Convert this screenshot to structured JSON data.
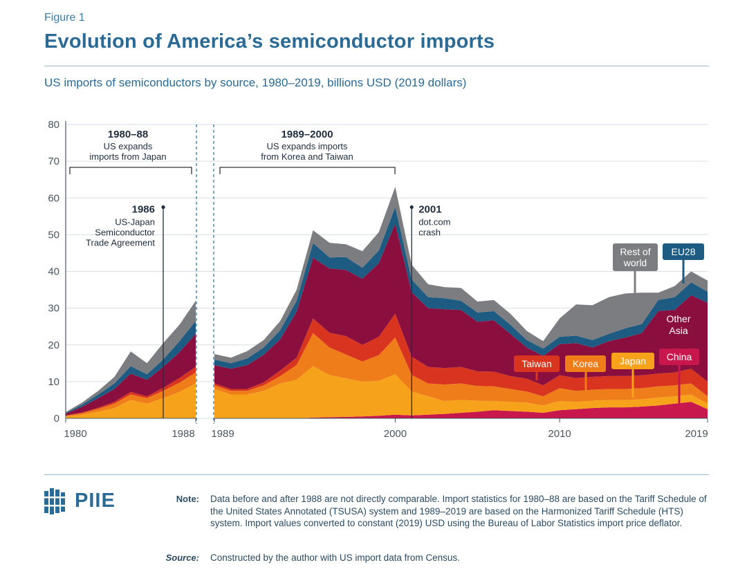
{
  "figure_label": "Figure 1",
  "title": "Evolution of America’s semiconductor imports",
  "subtitle": "US imports of semiconductors by source, 1980–2019, billions USD (2019 dollars)",
  "colors": {
    "china": "#c8174d",
    "japan": "#f7a21b",
    "korea": "#ef7d19",
    "taiwan": "#d8341f",
    "other_asia": "#8a0f3e",
    "eu28": "#1d5b82",
    "rest_of_world": "#7b7d80",
    "text_dark": "#1f2d3d",
    "accent": "#2b6a94"
  },
  "chart_data": {
    "type": "area",
    "stacked": true,
    "title": "Evolution of America’s semiconductor imports",
    "subtitle": "US imports of semiconductors by source, 1980–2019, billions USD (2019 dollars)",
    "ylim": [
      0,
      80
    ],
    "yticks": [
      "0",
      "10",
      "20",
      "30",
      "40",
      "50",
      "60",
      "70",
      "80"
    ],
    "xtick_labels": [
      "1980",
      "1988",
      "1989",
      "2000",
      "2010",
      "2019"
    ],
    "grid": "horizontal",
    "series_order": [
      "China",
      "Japan",
      "Korea",
      "Taiwan",
      "Other Asia",
      "EU28",
      "Rest of world"
    ],
    "series_keys": [
      "china",
      "japan",
      "korea",
      "taiwan",
      "other_asia",
      "eu28",
      "rest_of_world"
    ],
    "segments": [
      {
        "x": [
          1980,
          1981,
          1982,
          1983,
          1984,
          1985,
          1986,
          1987,
          1988
        ],
        "series": {
          "china": [
            0,
            0,
            0,
            0,
            0,
            0,
            0,
            0,
            0
          ],
          "japan": [
            0.5,
            1.0,
            1.8,
            2.8,
            5.0,
            4.0,
            5.5,
            7.2,
            9.5
          ],
          "korea": [
            0.2,
            0.4,
            0.8,
            1.2,
            1.5,
            1.5,
            2.0,
            2.5,
            3.0
          ],
          "taiwan": [
            0.1,
            0.2,
            0.3,
            0.5,
            0.7,
            0.5,
            0.8,
            1.3,
            1.5
          ],
          "other_asia": [
            0.5,
            1.5,
            2.6,
            3.5,
            5.0,
            4.5,
            5.7,
            7.0,
            9.0
          ],
          "eu28": [
            0.2,
            0.6,
            1.0,
            1.5,
            2.0,
            1.5,
            2.0,
            3.0,
            3.5
          ],
          "rest_of_world": [
            0.2,
            0.6,
            1.0,
            1.8,
            4.0,
            3.0,
            4.5,
            4.5,
            5.5
          ]
        }
      },
      {
        "x": [
          1989,
          1990,
          1991,
          1992,
          1993,
          1994,
          1995,
          1996,
          1997,
          1998,
          1999,
          2000,
          2001,
          2002,
          2003,
          2004,
          2005,
          2006,
          2007,
          2008,
          2009,
          2010,
          2011,
          2012,
          2013,
          2014,
          2015,
          2016,
          2017,
          2018,
          2019
        ],
        "series": {
          "china": [
            0,
            0,
            0,
            0,
            0,
            0,
            0.2,
            0.3,
            0.4,
            0.5,
            0.7,
            1.0,
            0.8,
            1.0,
            1.2,
            1.5,
            1.8,
            2.2,
            2.0,
            1.8,
            1.5,
            2.2,
            2.5,
            2.8,
            3.0,
            3.0,
            3.2,
            3.5,
            4.0,
            4.5,
            2.5
          ],
          "japan": [
            8.0,
            6.5,
            6.5,
            7.5,
            9.5,
            10.5,
            14.0,
            11.5,
            10.5,
            9.5,
            9.5,
            11.0,
            6.5,
            5.0,
            3.5,
            3.5,
            3.0,
            2.5,
            2.5,
            2.5,
            2.0,
            2.5,
            2.0,
            2.0,
            2.0,
            2.0,
            2.0,
            2.2,
            2.0,
            2.0,
            1.5
          ],
          "korea": [
            1.0,
            1.0,
            1.0,
            1.5,
            2.0,
            4.0,
            9.0,
            7.5,
            6.5,
            5.5,
            7.0,
            10.0,
            4.5,
            3.5,
            4.5,
            4.5,
            4.0,
            4.0,
            3.5,
            3.0,
            2.5,
            3.5,
            3.0,
            3.0,
            3.0,
            3.0,
            3.0,
            3.0,
            3.0,
            3.0,
            2.0
          ],
          "taiwan": [
            0.5,
            0.5,
            0.5,
            0.8,
            1.5,
            2.0,
            4.0,
            4.0,
            5.0,
            4.5,
            5.0,
            6.5,
            5.0,
            4.5,
            4.5,
            4.5,
            4.0,
            4.0,
            3.5,
            3.5,
            3.0,
            3.5,
            3.5,
            3.5,
            3.5,
            3.5,
            3.5,
            3.5,
            3.5,
            4.0,
            4.0
          ],
          "other_asia": [
            5.0,
            5.5,
            6.5,
            7.5,
            8.5,
            12.5,
            16.5,
            17.5,
            18.0,
            18.0,
            20.0,
            24.5,
            17.5,
            16.0,
            16.0,
            15.5,
            13.5,
            14.0,
            11.5,
            8.5,
            8.0,
            8.5,
            9.5,
            8.0,
            9.5,
            10.5,
            11.5,
            17.0,
            17.0,
            20.0,
            21.5
          ],
          "eu28": [
            1.5,
            1.5,
            1.8,
            2.0,
            2.5,
            3.0,
            4.0,
            3.0,
            3.5,
            3.0,
            3.5,
            4.5,
            3.5,
            3.0,
            3.0,
            2.5,
            2.5,
            2.5,
            2.5,
            2.0,
            2.0,
            2.0,
            2.0,
            2.0,
            2.0,
            2.5,
            2.5,
            3.0,
            3.5,
            3.5,
            3.0
          ],
          "rest_of_world": [
            1.5,
            1.5,
            2.0,
            2.0,
            2.5,
            3.0,
            3.5,
            4.0,
            3.5,
            4.5,
            5.0,
            5.5,
            4.0,
            3.5,
            3.0,
            3.5,
            3.0,
            3.0,
            3.0,
            2.5,
            2.0,
            5.0,
            8.5,
            9.5,
            10.0,
            9.5,
            8.5,
            2.0,
            3.0,
            3.0,
            3.0
          ]
        }
      }
    ],
    "period_annotations": [
      {
        "period": "1980–88",
        "text": [
          "US expands",
          "imports from Japan"
        ]
      },
      {
        "period": "1989–2000",
        "text": [
          "US expands imports",
          "from Korea and Taiwan"
        ]
      }
    ],
    "event_annotations": [
      {
        "year": 1986,
        "value": 57.5,
        "label": "1986",
        "text": [
          "US-Japan",
          "Semiconductor",
          "Trade Agreement"
        ]
      },
      {
        "year": 2001,
        "value": 57.5,
        "label": "2001",
        "text": [
          "dot.com",
          "crash"
        ]
      }
    ],
    "series_labels": [
      {
        "key": "rest_of_world",
        "text": [
          "Rest of",
          "world"
        ]
      },
      {
        "key": "eu28",
        "text": [
          "EU28"
        ]
      },
      {
        "key": "other_asia",
        "text": [
          "Other",
          "Asia"
        ]
      },
      {
        "key": "taiwan",
        "text": [
          "Taiwan"
        ]
      },
      {
        "key": "korea",
        "text": [
          "Korea"
        ]
      },
      {
        "key": "japan",
        "text": [
          "Japan"
        ]
      },
      {
        "key": "china",
        "text": [
          "China"
        ]
      }
    ]
  },
  "logo": {
    "text": "PIIE"
  },
  "note": {
    "label": "Note:",
    "text": "Data before and after 1988 are not directly comparable. Import statistics for 1980–88 are based on the Tariff Schedule of the United States Annotated (TSUSA) system and 1989–2019 are based on the Harmonized Tariff Schedule (HTS) system. Import values converted to constant (2019) USD using the Bureau of Labor Statistics import price deflator."
  },
  "source": {
    "label": "Source:",
    "text": "Constructed by the author with US import data from Census."
  }
}
